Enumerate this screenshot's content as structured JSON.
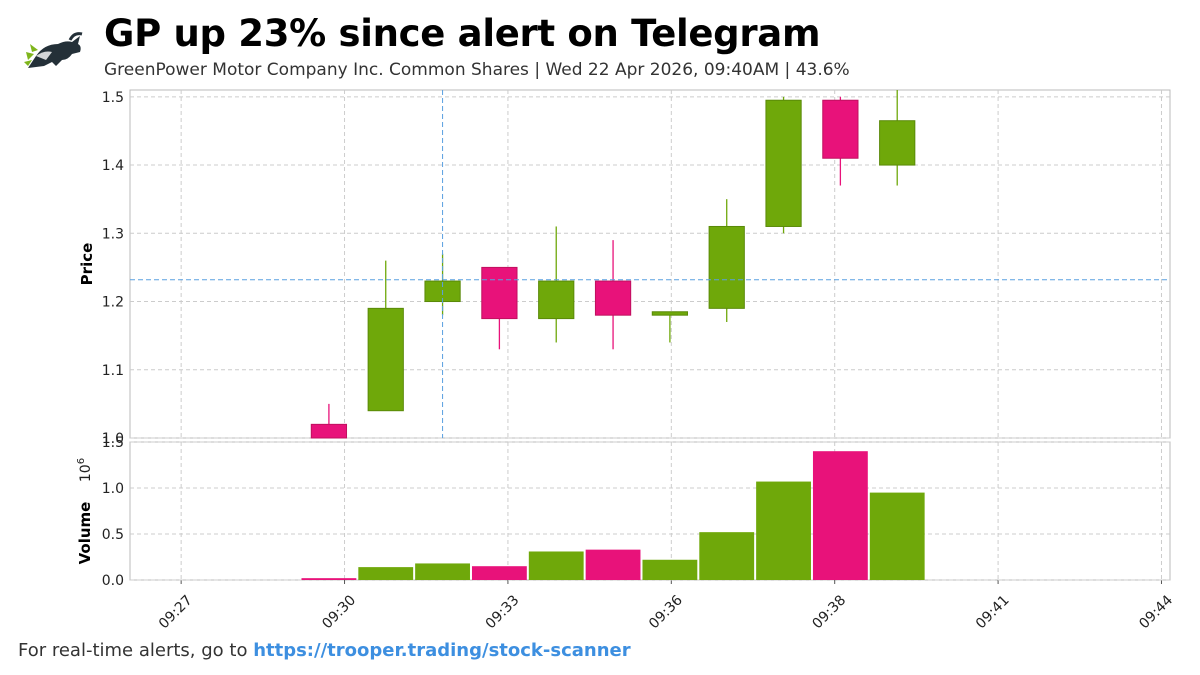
{
  "header": {
    "title": "GP up 23% since alert on Telegram",
    "company": "GreenPower Motor Company Inc. Common Shares",
    "separator": " | ",
    "datetime": "Wed 22 Apr 2026, 09:40AM",
    "change": "43.6%"
  },
  "footer": {
    "text": "For real-time alerts, go to ",
    "link": "https://trooper.trading/stock-scanner"
  },
  "colors": {
    "up": "#6fa80a",
    "down": "#e8127a",
    "grid": "#cccccc",
    "crosshair": "#5aa0e0"
  },
  "chart_data": {
    "type": "candlestick",
    "x_ticks": [
      "09:27",
      "09:30",
      "09:33",
      "09:36",
      "09:38",
      "09:41",
      "09:44"
    ],
    "x_range_minutes": [
      -0.9,
      17.4
    ],
    "x_tick_positions_minutes": [
      0,
      2.875,
      5.75,
      8.625,
      11.5,
      14.375,
      17.25
    ],
    "price_panel": {
      "ylabel": "Price",
      "ylim": [
        1.0,
        1.51
      ],
      "yticks": [
        1.0,
        1.1,
        1.2,
        1.3,
        1.4,
        1.5
      ],
      "crosshair": {
        "time_minutes": 4.6,
        "price": 1.232
      },
      "candles": [
        {
          "time": "09:29",
          "t": 2.6,
          "open": 1.02,
          "high": 1.05,
          "low": 1.0,
          "close": 1.0
        },
        {
          "time": "09:30",
          "t": 3.6,
          "open": 1.04,
          "high": 1.26,
          "low": 1.04,
          "close": 1.19
        },
        {
          "time": "09:31",
          "t": 4.6,
          "open": 1.2,
          "high": 1.27,
          "low": 1.18,
          "close": 1.23
        },
        {
          "time": "09:32",
          "t": 5.6,
          "open": 1.25,
          "high": 1.25,
          "low": 1.13,
          "close": 1.175
        },
        {
          "time": "09:33",
          "t": 6.6,
          "open": 1.175,
          "high": 1.31,
          "low": 1.14,
          "close": 1.23
        },
        {
          "time": "09:34",
          "t": 7.6,
          "open": 1.23,
          "high": 1.29,
          "low": 1.13,
          "close": 1.18
        },
        {
          "time": "09:35",
          "t": 8.6,
          "open": 1.18,
          "high": 1.185,
          "low": 1.14,
          "close": 1.185
        },
        {
          "time": "09:36",
          "t": 9.6,
          "open": 1.19,
          "high": 1.35,
          "low": 1.17,
          "close": 1.31
        },
        {
          "time": "09:37",
          "t": 10.6,
          "open": 1.31,
          "high": 1.5,
          "low": 1.3,
          "close": 1.495
        },
        {
          "time": "09:38",
          "t": 11.6,
          "open": 1.495,
          "high": 1.5,
          "low": 1.37,
          "close": 1.41
        },
        {
          "time": "09:39",
          "t": 12.6,
          "open": 1.4,
          "high": 1.51,
          "low": 1.37,
          "close": 1.465
        }
      ]
    },
    "volume_panel": {
      "ylabel": "Volume",
      "scale_label": "10",
      "scale_exponent": "6",
      "ylim": [
        0,
        1.5
      ],
      "yticks": [
        0.0,
        0.5,
        1.0,
        1.5
      ],
      "bars": [
        {
          "t": 2.6,
          "value": 0.02,
          "direction": "down"
        },
        {
          "t": 3.6,
          "value": 0.14,
          "direction": "up"
        },
        {
          "t": 4.6,
          "value": 0.18,
          "direction": "up"
        },
        {
          "t": 5.6,
          "value": 0.15,
          "direction": "down"
        },
        {
          "t": 6.6,
          "value": 0.31,
          "direction": "up"
        },
        {
          "t": 7.6,
          "value": 0.33,
          "direction": "down"
        },
        {
          "t": 8.6,
          "value": 0.22,
          "direction": "up"
        },
        {
          "t": 9.6,
          "value": 0.52,
          "direction": "up"
        },
        {
          "t": 10.6,
          "value": 1.07,
          "direction": "up"
        },
        {
          "t": 11.6,
          "value": 1.4,
          "direction": "down"
        },
        {
          "t": 12.6,
          "value": 0.95,
          "direction": "up"
        }
      ]
    }
  }
}
